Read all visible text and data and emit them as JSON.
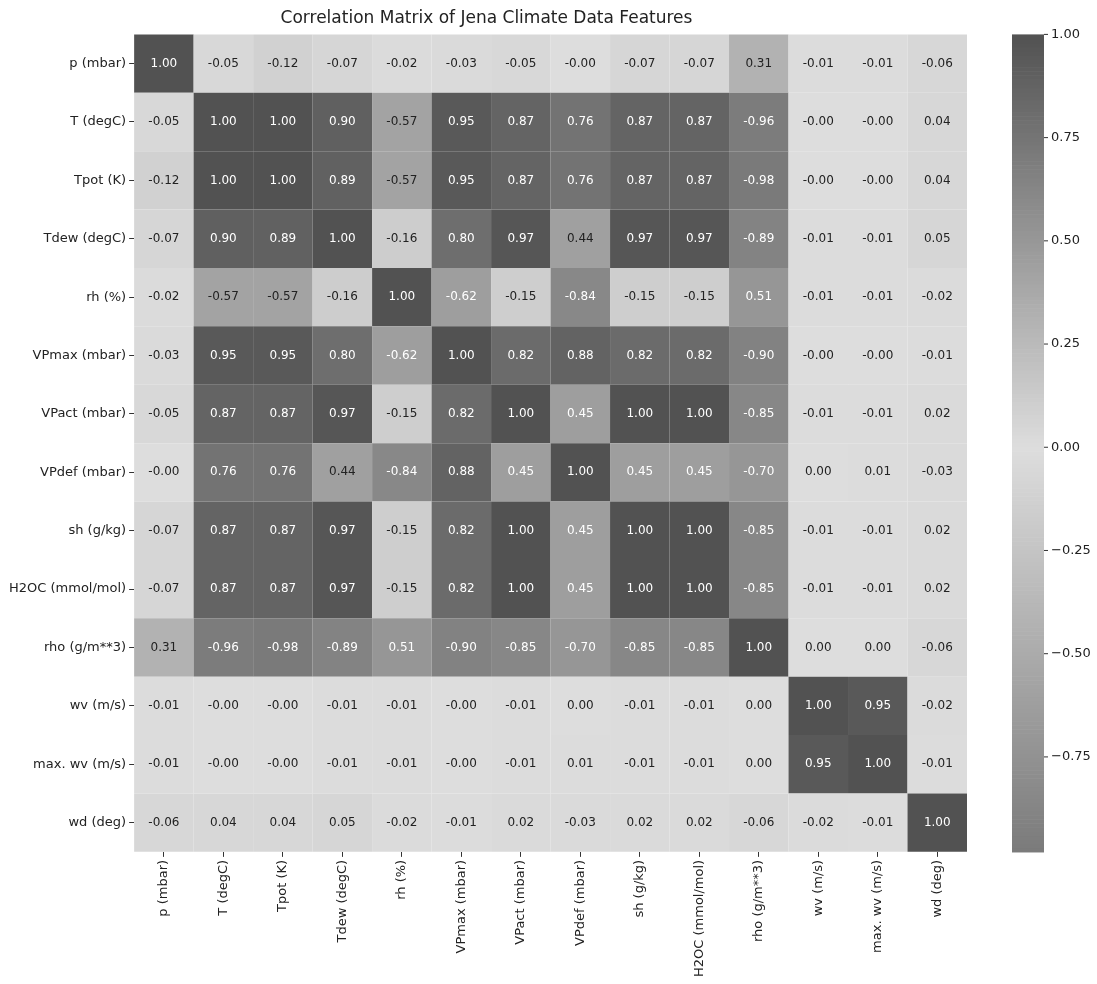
{
  "chart_data": {
    "type": "heatmap",
    "title": "Correlation Matrix of Jena Climate Data Features",
    "categories": [
      "p (mbar)",
      "T (degC)",
      "Tpot (K)",
      "Tdew (degC)",
      "rh (%)",
      "VPmax (mbar)",
      "VPact (mbar)",
      "VPdef (mbar)",
      "sh (g/kg)",
      "H2OC (mmol/mol)",
      "rho (g/m**3)",
      "wv (m/s)",
      "max. wv (m/s)",
      "wd (deg)"
    ],
    "y_categories": [
      "p (mbar)",
      "T (degC)",
      "Tpot (K)",
      "Tdew (degC)",
      "rh (%)",
      "VPmax (mbar)",
      "VPact (mbar)",
      "VPdef (mbar)",
      "sh (g/kg)",
      "H2OC (mmol/mol)",
      "rho (g/m**3)",
      "wv (m/s)",
      "max. wv (m/s)",
      "wd (deg)"
    ],
    "cells": [
      [
        1.0,
        -0.05,
        -0.12,
        -0.07,
        -0.02,
        -0.03,
        -0.05,
        0.0,
        -0.07,
        -0.07,
        0.31,
        -0.01,
        -0.01,
        -0.06
      ],
      [
        -0.05,
        1.0,
        1.0,
        0.9,
        -0.57,
        0.95,
        0.87,
        0.76,
        0.87,
        0.87,
        -0.96,
        0.0,
        0.0,
        0.04
      ],
      [
        -0.12,
        1.0,
        1.0,
        0.89,
        -0.57,
        0.95,
        0.87,
        0.76,
        0.87,
        0.87,
        -0.98,
        0.0,
        0.0,
        0.04
      ],
      [
        -0.07,
        0.9,
        0.89,
        1.0,
        -0.16,
        0.8,
        0.97,
        0.44,
        0.97,
        0.97,
        -0.89,
        -0.01,
        -0.01,
        0.05
      ],
      [
        -0.02,
        -0.57,
        -0.57,
        -0.16,
        1.0,
        -0.62,
        -0.15,
        -0.84,
        -0.15,
        -0.15,
        0.51,
        -0.01,
        -0.01,
        -0.02
      ],
      [
        -0.03,
        0.95,
        0.95,
        0.8,
        -0.62,
        1.0,
        0.82,
        0.88,
        0.82,
        0.82,
        -0.9,
        0.0,
        0.0,
        -0.01
      ],
      [
        -0.05,
        0.87,
        0.87,
        0.97,
        -0.15,
        0.82,
        1.0,
        0.45,
        1.0,
        1.0,
        -0.85,
        -0.01,
        -0.01,
        0.02
      ],
      [
        0.0,
        0.76,
        0.76,
        0.44,
        -0.84,
        0.88,
        0.45,
        1.0,
        0.45,
        0.45,
        -0.7,
        0.0,
        0.01,
        -0.03
      ],
      [
        -0.07,
        0.87,
        0.87,
        0.97,
        -0.15,
        0.82,
        1.0,
        0.45,
        1.0,
        1.0,
        -0.85,
        -0.01,
        -0.01,
        0.02
      ],
      [
        -0.07,
        0.87,
        0.87,
        0.97,
        -0.15,
        0.82,
        1.0,
        0.45,
        1.0,
        1.0,
        -0.85,
        -0.01,
        -0.01,
        0.02
      ],
      [
        0.31,
        -0.96,
        -0.98,
        -0.89,
        0.51,
        -0.9,
        -0.85,
        -0.7,
        -0.85,
        -0.85,
        1.0,
        0.0,
        0.0,
        -0.06
      ],
      [
        -0.01,
        0.0,
        0.0,
        -0.01,
        -0.01,
        0.0,
        -0.01,
        0.0,
        -0.01,
        -0.01,
        0.0,
        1.0,
        0.95,
        -0.02
      ],
      [
        -0.01,
        0.0,
        0.0,
        -0.01,
        -0.01,
        0.0,
        -0.01,
        0.01,
        -0.01,
        -0.01,
        0.0,
        0.95,
        1.0,
        -0.01
      ],
      [
        -0.06,
        0.04,
        0.04,
        0.05,
        -0.02,
        -0.01,
        0.02,
        -0.03,
        0.02,
        0.02,
        -0.06,
        -0.02,
        -0.01,
        1.0
      ]
    ],
    "cell_labels": [
      [
        "1.00",
        "-0.05",
        "-0.12",
        "-0.07",
        "-0.02",
        "-0.03",
        "-0.05",
        "-0.00",
        "-0.07",
        "-0.07",
        "0.31",
        "-0.01",
        "-0.01",
        "-0.06"
      ],
      [
        "-0.05",
        "1.00",
        "1.00",
        "0.90",
        "-0.57",
        "0.95",
        "0.87",
        "0.76",
        "0.87",
        "0.87",
        "-0.96",
        "-0.00",
        "-0.00",
        "0.04"
      ],
      [
        "-0.12",
        "1.00",
        "1.00",
        "0.89",
        "-0.57",
        "0.95",
        "0.87",
        "0.76",
        "0.87",
        "0.87",
        "-0.98",
        "-0.00",
        "-0.00",
        "0.04"
      ],
      [
        "-0.07",
        "0.90",
        "0.89",
        "1.00",
        "-0.16",
        "0.80",
        "0.97",
        "0.44",
        "0.97",
        "0.97",
        "-0.89",
        "-0.01",
        "-0.01",
        "0.05"
      ],
      [
        "-0.02",
        "-0.57",
        "-0.57",
        "-0.16",
        "1.00",
        "-0.62",
        "-0.15",
        "-0.84",
        "-0.15",
        "-0.15",
        "0.51",
        "-0.01",
        "-0.01",
        "-0.02"
      ],
      [
        "-0.03",
        "0.95",
        "0.95",
        "0.80",
        "-0.62",
        "1.00",
        "0.82",
        "0.88",
        "0.82",
        "0.82",
        "-0.90",
        "-0.00",
        "-0.00",
        "-0.01"
      ],
      [
        "-0.05",
        "0.87",
        "0.87",
        "0.97",
        "-0.15",
        "0.82",
        "1.00",
        "0.45",
        "1.00",
        "1.00",
        "-0.85",
        "-0.01",
        "-0.01",
        "0.02"
      ],
      [
        "-0.00",
        "0.76",
        "0.76",
        "0.44",
        "-0.84",
        "0.88",
        "0.45",
        "1.00",
        "0.45",
        "0.45",
        "-0.70",
        "0.00",
        "0.01",
        "-0.03"
      ],
      [
        "-0.07",
        "0.87",
        "0.87",
        "0.97",
        "-0.15",
        "0.82",
        "1.00",
        "0.45",
        "1.00",
        "1.00",
        "-0.85",
        "-0.01",
        "-0.01",
        "0.02"
      ],
      [
        "-0.07",
        "0.87",
        "0.87",
        "0.97",
        "-0.15",
        "0.82",
        "1.00",
        "0.45",
        "1.00",
        "1.00",
        "-0.85",
        "-0.01",
        "-0.01",
        "0.02"
      ],
      [
        "0.31",
        "-0.96",
        "-0.98",
        "-0.89",
        "0.51",
        "-0.90",
        "-0.85",
        "-0.70",
        "-0.85",
        "-0.85",
        "1.00",
        "0.00",
        "0.00",
        "-0.06"
      ],
      [
        "-0.01",
        "-0.00",
        "-0.00",
        "-0.01",
        "-0.01",
        "-0.00",
        "-0.01",
        "0.00",
        "-0.01",
        "-0.01",
        "0.00",
        "1.00",
        "0.95",
        "-0.02"
      ],
      [
        "-0.01",
        "-0.00",
        "-0.00",
        "-0.01",
        "-0.01",
        "-0.00",
        "-0.01",
        "0.01",
        "-0.01",
        "-0.01",
        "0.00",
        "0.95",
        "1.00",
        "-0.01"
      ],
      [
        "-0.06",
        "0.04",
        "0.04",
        "0.05",
        "-0.02",
        "-0.01",
        "0.02",
        "-0.03",
        "0.02",
        "0.02",
        "-0.06",
        "-0.02",
        "-0.01",
        "1.00"
      ]
    ],
    "clim": [
      -0.98,
      1.0
    ],
    "cticks": [
      {
        "value": 1,
        "label": "1.00"
      },
      {
        "value": 0.75,
        "label": "0.75"
      },
      {
        "value": 0.5,
        "label": "0.50"
      },
      {
        "value": 0.25,
        "label": "0.25"
      },
      {
        "value": 0,
        "label": "0.00"
      },
      {
        "value": -0.25,
        "label": "−0.25"
      },
      {
        "value": -0.5,
        "label": "−0.50"
      },
      {
        "value": -0.75,
        "label": "−0.75"
      }
    ]
  }
}
